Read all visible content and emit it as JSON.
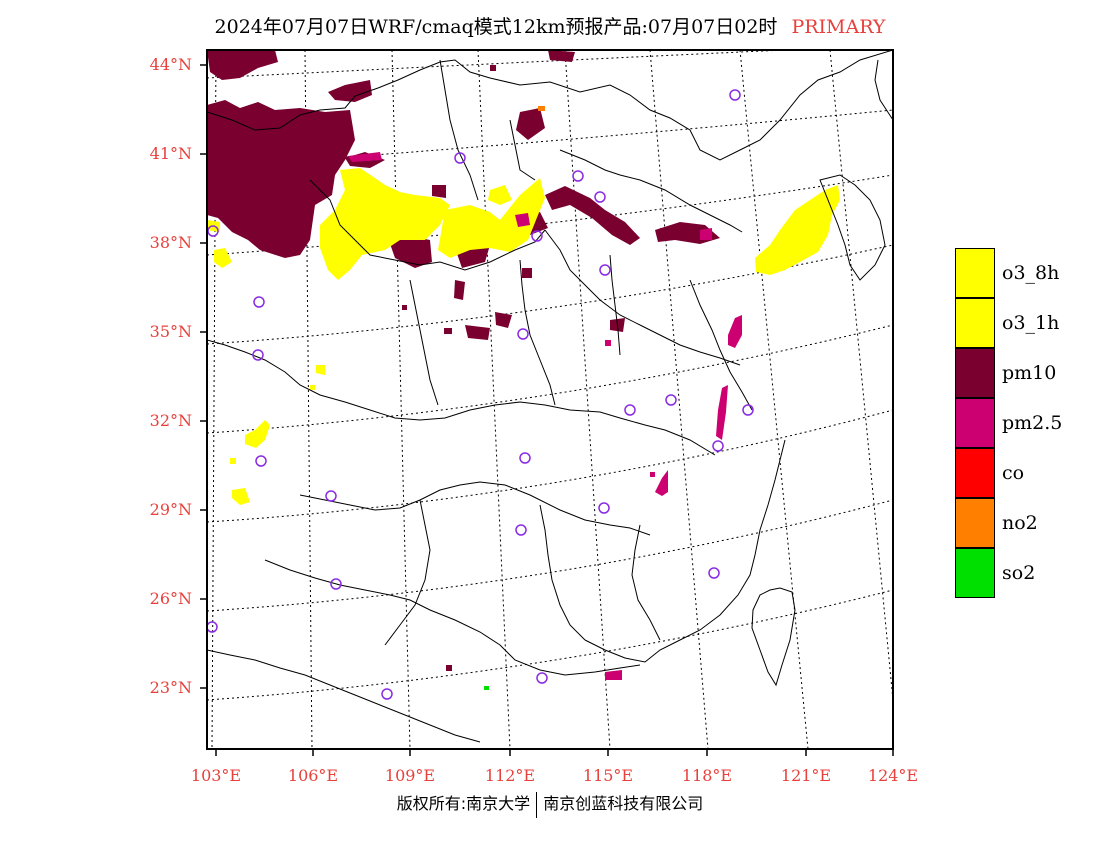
{
  "title": {
    "main": "2024年07月07日WRF/cmaq模式12km预报产品:07月07日02时",
    "tag": "PRIMARY"
  },
  "colors": {
    "label": "#e8403c",
    "o3_8h": "#ffff00",
    "o3_1h": "#ffff00",
    "pm10": "#7a0030",
    "pm2_5": "#cc0070",
    "co": "#ff0000",
    "no2": "#ff7f00",
    "so2": "#00e000",
    "station": "#8a2be2"
  },
  "latitude_labels": [
    "44°N",
    "41°N",
    "38°N",
    "35°N",
    "32°N",
    "29°N",
    "26°N",
    "23°N"
  ],
  "longitude_labels": [
    "103°E",
    "106°E",
    "109°E",
    "112°E",
    "115°E",
    "118°E",
    "121°E",
    "124°E"
  ],
  "legend": [
    {
      "label": "o3_8h",
      "color": "#ffff00"
    },
    {
      "label": "o3_1h",
      "color": "#ffff00"
    },
    {
      "label": "pm10",
      "color": "#7a0030"
    },
    {
      "label": "pm2.5",
      "color": "#cc0070"
    },
    {
      "label": "co",
      "color": "#ff0000"
    },
    {
      "label": "no2",
      "color": "#ff7f00"
    },
    {
      "label": "so2",
      "color": "#00e000"
    }
  ],
  "footer": {
    "left": "版权所有:南京大学",
    "right": "南京创蓝科技有限公司"
  }
}
